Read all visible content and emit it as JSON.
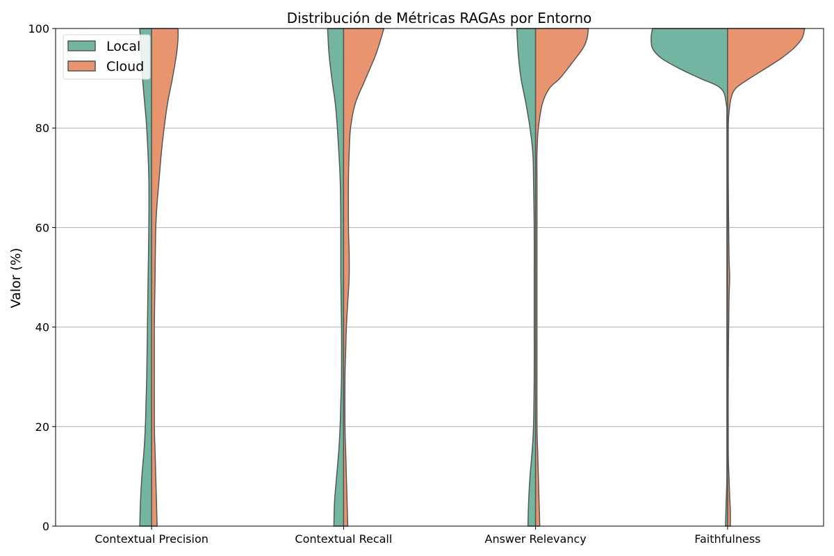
{
  "chart_data": {
    "type": "violin",
    "title": "Distribución de Métricas RAGAs por Entorno",
    "xlabel": "",
    "ylabel": "Valor (%)",
    "ylim": [
      0,
      100
    ],
    "yticks": [
      0,
      20,
      40,
      60,
      80,
      100
    ],
    "grid": "y",
    "legend_position": "top-left",
    "categories": [
      "Contextual Precision",
      "Contextual Recall",
      "Answer Relevancy",
      "Faithfulness"
    ],
    "series": [
      {
        "name": "Local",
        "side": "left",
        "color": "#72b5a0",
        "densities": [
          [
            [
              0,
              17
            ],
            [
              5,
              16
            ],
            [
              10,
              14
            ],
            [
              15,
              11
            ],
            [
              20,
              9
            ],
            [
              25,
              8
            ],
            [
              30,
              7
            ],
            [
              40,
              6
            ],
            [
              50,
              5
            ],
            [
              60,
              4
            ],
            [
              70,
              4
            ],
            [
              80,
              7
            ],
            [
              85,
              10
            ],
            [
              90,
              13
            ],
            [
              95,
              15
            ],
            [
              100,
              17
            ]
          ],
          [
            [
              0,
              14
            ],
            [
              5,
              13
            ],
            [
              10,
              10
            ],
            [
              15,
              7
            ],
            [
              20,
              5
            ],
            [
              25,
              4
            ],
            [
              30,
              3
            ],
            [
              40,
              3
            ],
            [
              50,
              4
            ],
            [
              60,
              4
            ],
            [
              70,
              5
            ],
            [
              80,
              9
            ],
            [
              85,
              12
            ],
            [
              90,
              17
            ],
            [
              95,
              21
            ],
            [
              100,
              23
            ]
          ],
          [
            [
              0,
              11
            ],
            [
              5,
              10
            ],
            [
              10,
              8
            ],
            [
              15,
              5
            ],
            [
              20,
              3
            ],
            [
              30,
              2
            ],
            [
              40,
              2
            ],
            [
              50,
              2
            ],
            [
              60,
              2
            ],
            [
              70,
              3
            ],
            [
              75,
              4
            ],
            [
              80,
              8
            ],
            [
              85,
              14
            ],
            [
              90,
              21
            ],
            [
              95,
              25
            ],
            [
              100,
              27
            ]
          ],
          [
            [
              0,
              3
            ],
            [
              5,
              2
            ],
            [
              10,
              1
            ],
            [
              20,
              1
            ],
            [
              40,
              1
            ],
            [
              60,
              1
            ],
            [
              80,
              1
            ],
            [
              85,
              2
            ],
            [
              88,
              10
            ],
            [
              90,
              40
            ],
            [
              92,
              70
            ],
            [
              94,
              95
            ],
            [
              96,
              108
            ],
            [
              98,
              110
            ],
            [
              99.3,
              109
            ],
            [
              100,
              108
            ]
          ]
        ]
      },
      {
        "name": "Cloud",
        "side": "right",
        "color": "#e8956f",
        "densities": [
          [
            [
              0,
              8
            ],
            [
              5,
              7
            ],
            [
              10,
              6
            ],
            [
              15,
              5
            ],
            [
              20,
              4
            ],
            [
              30,
              4
            ],
            [
              40,
              4
            ],
            [
              50,
              5
            ],
            [
              60,
              6
            ],
            [
              65,
              8
            ],
            [
              70,
              11
            ],
            [
              75,
              14
            ],
            [
              80,
              18
            ],
            [
              85,
              23
            ],
            [
              90,
              30
            ],
            [
              95,
              36
            ],
            [
              98,
              38
            ],
            [
              100,
              38
            ]
          ],
          [
            [
              0,
              6
            ],
            [
              5,
              5
            ],
            [
              10,
              4
            ],
            [
              15,
              3
            ],
            [
              20,
              2
            ],
            [
              30,
              2
            ],
            [
              35,
              3
            ],
            [
              40,
              4
            ],
            [
              45,
              6
            ],
            [
              50,
              8
            ],
            [
              55,
              8
            ],
            [
              60,
              7
            ],
            [
              70,
              7
            ],
            [
              75,
              8
            ],
            [
              80,
              10
            ],
            [
              85,
              17
            ],
            [
              90,
              32
            ],
            [
              95,
              47
            ],
            [
              100,
              58
            ]
          ],
          [
            [
              0,
              6
            ],
            [
              5,
              5
            ],
            [
              10,
              4
            ],
            [
              15,
              3
            ],
            [
              20,
              2
            ],
            [
              30,
              2
            ],
            [
              40,
              2
            ],
            [
              50,
              2
            ],
            [
              60,
              2
            ],
            [
              70,
              2
            ],
            [
              75,
              2
            ],
            [
              80,
              4
            ],
            [
              85,
              10
            ],
            [
              88,
              20
            ],
            [
              90,
              35
            ],
            [
              93,
              52
            ],
            [
              96,
              68
            ],
            [
              98,
              74
            ],
            [
              100,
              76
            ]
          ],
          [
            [
              0,
              4
            ],
            [
              3,
              4
            ],
            [
              6,
              3
            ],
            [
              10,
              2
            ],
            [
              15,
              1
            ],
            [
              30,
              1
            ],
            [
              45,
              2
            ],
            [
              50,
              3
            ],
            [
              55,
              2
            ],
            [
              70,
              1
            ],
            [
              80,
              1
            ],
            [
              83,
              2
            ],
            [
              86,
              5
            ],
            [
              88,
              12
            ],
            [
              90,
              32
            ],
            [
              92,
              55
            ],
            [
              94,
              77
            ],
            [
              96,
              95
            ],
            [
              98,
              107
            ],
            [
              100,
              111
            ]
          ]
        ]
      }
    ],
    "legend": [
      "Local",
      "Cloud"
    ]
  }
}
